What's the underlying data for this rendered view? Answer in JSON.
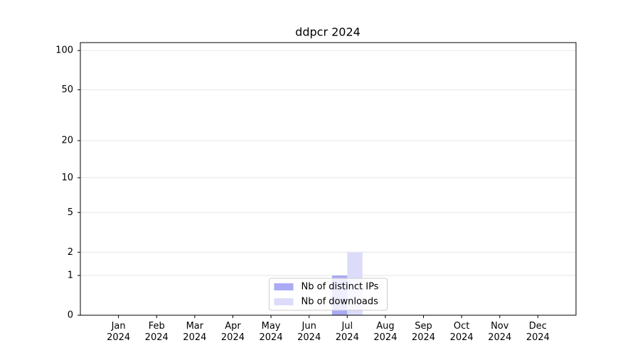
{
  "chart_data": {
    "type": "bar",
    "title": "ddpcr 2024",
    "yscale": "log1p",
    "categories": [
      "Jan 2024",
      "Feb 2024",
      "Mar 2024",
      "Apr 2024",
      "May 2024",
      "Jun 2024",
      "Jul 2024",
      "Aug 2024",
      "Sep 2024",
      "Oct 2024",
      "Nov 2024",
      "Dec 2024"
    ],
    "series": [
      {
        "name": "Nb of distinct IPs",
        "color": "#aaaaf5",
        "values": [
          0,
          0,
          0,
          0,
          0,
          0,
          1,
          0,
          0,
          0,
          0,
          0
        ]
      },
      {
        "name": "Nb of downloads",
        "color": "#dcdcfa",
        "values": [
          0,
          0,
          0,
          0,
          0,
          0,
          2,
          0,
          0,
          0,
          0,
          0
        ]
      }
    ],
    "ylim": [
      0,
      115
    ],
    "yticks": [
      0,
      1,
      2,
      5,
      10,
      20,
      50,
      100
    ],
    "grid": true,
    "legend": "lower center"
  }
}
